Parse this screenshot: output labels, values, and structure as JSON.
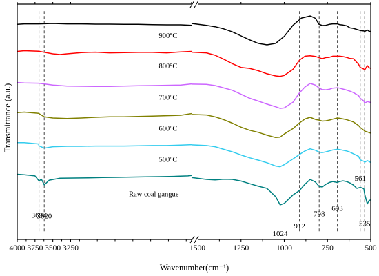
{
  "chart_data": {
    "type": "line",
    "xlabel": "Wavenumber(cm⁻¹)",
    "ylabel": "Transmittance (a.u.)",
    "x_axis": {
      "direction": "decreasing",
      "break_between": [
        1550,
        1500
      ],
      "segments": [
        {
          "from": 4000,
          "to": 1550,
          "ticks": [
            4000,
            3750,
            3500,
            3250
          ]
        },
        {
          "from": 1500,
          "to": 500,
          "ticks": [
            1500,
            1250,
            1000,
            750,
            500
          ]
        }
      ],
      "tick_labels": [
        "4000",
        "3750",
        "3500",
        "3250",
        "1500",
        "1250",
        "1000",
        "750",
        "500"
      ]
    },
    "y_axis": {
      "tick_labels": false,
      "ylim": [
        0,
        100
      ]
    },
    "reference_lines": [
      {
        "x": 3694,
        "label": "3694"
      },
      {
        "x": 3620,
        "label": "3620"
      },
      {
        "x": 1024,
        "label": "1024"
      },
      {
        "x": 912,
        "label": "912"
      },
      {
        "x": 798,
        "label": "798"
      },
      {
        "x": 693,
        "label": "693"
      },
      {
        "x": 561,
        "label": "561"
      },
      {
        "x": 535,
        "label": "535"
      }
    ],
    "series": [
      {
        "name": "900°C",
        "color": "#000000",
        "x": [
          4000,
          3900,
          3700,
          3500,
          3300,
          3100,
          2900,
          2700,
          2500,
          2300,
          2100,
          1900,
          1700,
          1550,
          1500,
          1450,
          1400,
          1350,
          1300,
          1250,
          1200,
          1150,
          1100,
          1050,
          1000,
          950,
          900,
          850,
          820,
          800,
          780,
          760,
          740,
          720,
          693,
          680,
          660,
          640,
          620,
          600,
          561,
          540,
          535,
          520,
          510,
          500
        ],
        "y": [
          91.4,
          91.6,
          91.6,
          91.8,
          91.6,
          91.6,
          91.5,
          91.5,
          91.4,
          91.4,
          91.3,
          91.2,
          91.2,
          91.0,
          91.8,
          91.0,
          90.4,
          89.5,
          88.2,
          86.5,
          84.8,
          83.3,
          82.7,
          83.3,
          86.3,
          91.0,
          94.1,
          95.0,
          94.0,
          91.5,
          90.9,
          91.0,
          91.4,
          91.6,
          91.6,
          91.3,
          91.1,
          90.8,
          89.9,
          89.7,
          88.8,
          88.6,
          88.4,
          89.0,
          88.5,
          88.4
        ]
      },
      {
        "name": "800°C",
        "color": "#ff0000",
        "x": [
          4000,
          3900,
          3700,
          3500,
          3400,
          3300,
          3100,
          2900,
          2700,
          2500,
          2300,
          2100,
          1900,
          1700,
          1550,
          1500,
          1450,
          1400,
          1350,
          1300,
          1250,
          1200,
          1150,
          1100,
          1050,
          1024,
          1000,
          950,
          912,
          880,
          850,
          820,
          798,
          780,
          760,
          740,
          720,
          693,
          680,
          660,
          640,
          620,
          600,
          570,
          561,
          540,
          535,
          520,
          510,
          500
        ],
        "y": [
          79.9,
          80.2,
          80.0,
          78.9,
          78.6,
          78.9,
          79.4,
          79.6,
          79.3,
          79.4,
          79.5,
          79.5,
          79.3,
          79.7,
          79.9,
          79.6,
          79.3,
          78.3,
          76.6,
          74.7,
          73.1,
          72.7,
          71.7,
          70.4,
          69.5,
          69.3,
          69.7,
          72.3,
          76.2,
          77.9,
          78.1,
          77.8,
          77.2,
          76.8,
          77.3,
          77.4,
          77.9,
          77.9,
          77.9,
          77.7,
          77.4,
          76.9,
          76.8,
          74.4,
          73.1,
          72.4,
          72.0,
          73.9,
          73.0,
          72.7
        ]
      },
      {
        "name": "700°C",
        "color": "#cc66ff",
        "x": [
          4000,
          3900,
          3700,
          3620,
          3500,
          3300,
          3100,
          2900,
          2700,
          2500,
          2300,
          2100,
          1900,
          1700,
          1550,
          1500,
          1450,
          1400,
          1350,
          1300,
          1250,
          1200,
          1150,
          1100,
          1050,
          1024,
          1000,
          950,
          912,
          880,
          850,
          820,
          798,
          780,
          760,
          740,
          720,
          693,
          680,
          660,
          640,
          620,
          600,
          570,
          561,
          540,
          535,
          520,
          510,
          500
        ],
        "y": [
          66.7,
          66.5,
          66.4,
          66.1,
          65.6,
          65.2,
          65.1,
          65.0,
          65.0,
          65.2,
          65.3,
          65.4,
          65.5,
          65.6,
          66.1,
          66.0,
          65.9,
          65.4,
          64.4,
          63.4,
          61.7,
          60.0,
          58.8,
          57.5,
          56.4,
          55.7,
          55.9,
          58.3,
          62.3,
          64.8,
          66.3,
          65.6,
          64.3,
          63.7,
          63.6,
          63.8,
          64.3,
          64.5,
          64.3,
          63.9,
          63.5,
          63.0,
          62.4,
          61.1,
          60.0,
          58.8,
          57.9,
          58.6,
          58.4,
          58.2
        ]
      },
      {
        "name": "600°C",
        "color": "#808000",
        "x": [
          4000,
          3900,
          3700,
          3620,
          3500,
          3300,
          3100,
          2900,
          2700,
          2500,
          2300,
          2100,
          1900,
          1700,
          1550,
          1500,
          1450,
          1400,
          1350,
          1300,
          1250,
          1200,
          1150,
          1100,
          1050,
          1024,
          1000,
          950,
          912,
          880,
          850,
          820,
          798,
          780,
          760,
          740,
          720,
          693,
          680,
          660,
          640,
          620,
          600,
          570,
          561,
          540,
          535,
          520,
          510,
          500
        ],
        "y": [
          53.9,
          54.1,
          53.6,
          52.1,
          51.6,
          51.4,
          51.6,
          51.9,
          52.1,
          52.1,
          52.3,
          52.4,
          52.6,
          52.8,
          53.5,
          53.1,
          52.9,
          52.1,
          50.9,
          49.4,
          47.7,
          46.4,
          45.5,
          44.3,
          43.3,
          43.5,
          44.8,
          47.1,
          49.5,
          51.2,
          51.9,
          51.0,
          50.7,
          50.3,
          50.4,
          50.7,
          51.1,
          51.6,
          51.5,
          51.2,
          50.9,
          50.4,
          49.9,
          48.4,
          47.6,
          46.4,
          46.0,
          45.7,
          45.4,
          45.2
        ]
      },
      {
        "name": "500°C",
        "color": "#33ccee",
        "x": [
          4000,
          3900,
          3700,
          3694,
          3620,
          3500,
          3300,
          3100,
          2900,
          2700,
          2500,
          2300,
          2100,
          1900,
          1700,
          1550,
          1500,
          1450,
          1400,
          1350,
          1300,
          1250,
          1200,
          1150,
          1100,
          1050,
          1024,
          1000,
          950,
          912,
          880,
          850,
          820,
          798,
          780,
          760,
          740,
          720,
          693,
          680,
          660,
          640,
          620,
          600,
          570,
          561,
          540,
          535,
          520,
          510,
          500
        ],
        "y": [
          41.1,
          41.1,
          40.6,
          39.8,
          38.8,
          39.4,
          39.6,
          39.6,
          39.7,
          39.7,
          39.7,
          39.8,
          39.9,
          39.9,
          40.1,
          40.3,
          40.2,
          39.9,
          39.4,
          38.3,
          37.2,
          35.9,
          34.7,
          33.7,
          32.6,
          31.2,
          30.9,
          31.8,
          34.2,
          36.1,
          37.6,
          38.5,
          37.9,
          37.1,
          36.9,
          37.2,
          37.6,
          38.0,
          38.3,
          38.2,
          37.9,
          37.6,
          37.1,
          36.4,
          35.3,
          33.8,
          33.2,
          32.8,
          33.5,
          33.1,
          32.7
        ]
      },
      {
        "name": "Raw coal gangue",
        "color": "#008080",
        "x": [
          4000,
          3900,
          3750,
          3694,
          3660,
          3620,
          3550,
          3400,
          3200,
          3000,
          2800,
          2600,
          2400,
          2200,
          2000,
          1800,
          1600,
          1550,
          1500,
          1450,
          1400,
          1350,
          1300,
          1250,
          1200,
          1150,
          1100,
          1050,
          1024,
          1000,
          950,
          912,
          880,
          850,
          820,
          798,
          780,
          760,
          740,
          720,
          693,
          680,
          660,
          640,
          620,
          600,
          580,
          561,
          550,
          540,
          535,
          520,
          510,
          500
        ],
        "y": [
          27.7,
          27.5,
          27.0,
          24.9,
          25.6,
          23.2,
          25.2,
          26.0,
          26.1,
          26.2,
          26.3,
          26.4,
          26.5,
          26.6,
          26.7,
          26.8,
          27.0,
          27.2,
          26.3,
          25.5,
          25.3,
          25.6,
          25.5,
          24.8,
          23.7,
          22.6,
          21.7,
          18.2,
          14.7,
          15.3,
          18.9,
          20.8,
          23.5,
          25.5,
          24.4,
          22.5,
          22.3,
          23.4,
          24.2,
          24.6,
          24.2,
          24.6,
          24.9,
          24.6,
          24.0,
          23.1,
          21.7,
          22.1,
          21.9,
          21.5,
          19.3,
          15.1,
          16.5,
          16.8
        ]
      }
    ],
    "curve_labels": [
      {
        "series": "900°C",
        "text": "900°C",
        "at_x": 1880,
        "y": 85.6
      },
      {
        "series": "800°C",
        "text": "800°C",
        "at_x": 1880,
        "y": 72.7
      },
      {
        "series": "700°C",
        "text": "700°C",
        "at_x": 1880,
        "y": 59.4
      },
      {
        "series": "600°C",
        "text": "600°C",
        "at_x": 1880,
        "y": 46.2
      },
      {
        "series": "500°C",
        "text": "500°C",
        "at_x": 1880,
        "y": 33.0
      },
      {
        "series": "Raw coal gangue",
        "text": "Raw coal gangue",
        "at_x": 2080,
        "y": 18.4
      }
    ],
    "peak_labels": [
      {
        "text": "3694",
        "x": 3694,
        "y": 9.2
      },
      {
        "text": "3620",
        "x": 3620,
        "y": 9.0
      },
      {
        "text": "1024",
        "x": 1024,
        "y": 1.5
      },
      {
        "text": "912",
        "x": 912,
        "y": 4.7
      },
      {
        "text": "798",
        "x": 798,
        "y": 9.8
      },
      {
        "text": "693",
        "x": 693,
        "y": 12.1
      },
      {
        "text": "561",
        "x": 561,
        "y": 25.0
      },
      {
        "text": "535",
        "x": 535,
        "y": 5.7
      }
    ]
  }
}
